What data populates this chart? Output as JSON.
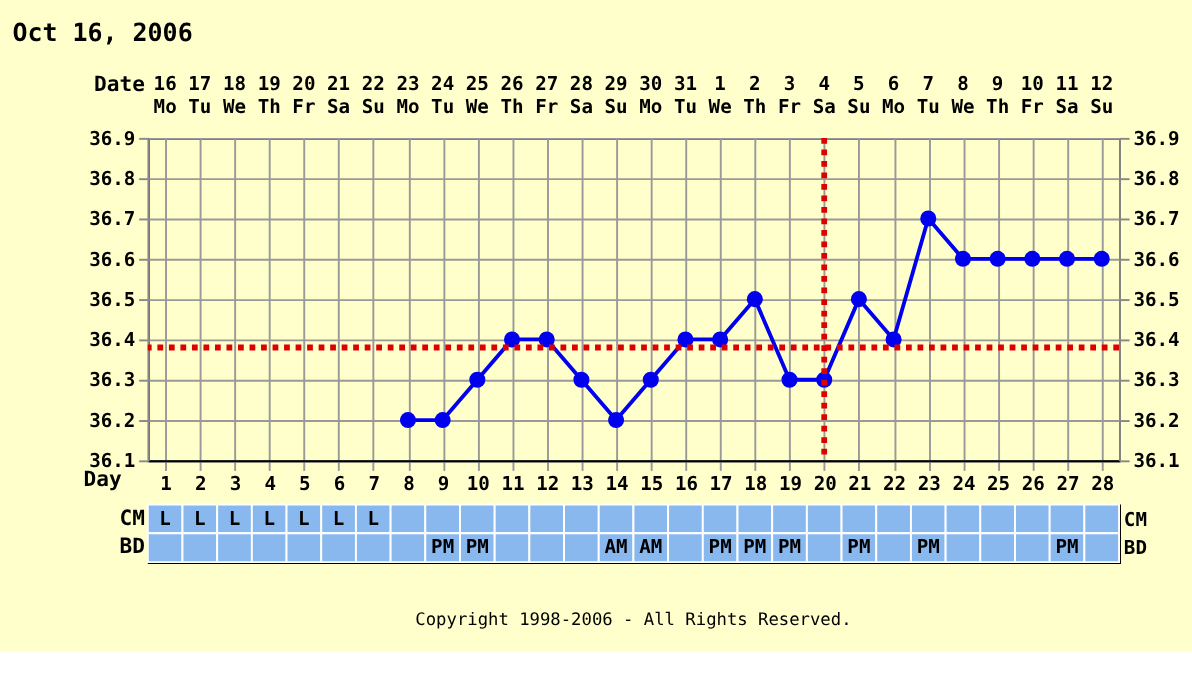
{
  "chart_data": [
    {
      "type": "heatmap",
      "title": "Oct 16, 2006",
      "categories": [
        null,
        null,
        null,
        null,
        null,
        null,
        null,
        null,
        null,
        null,
        null,
        null,
        null,
        null,
        null,
        null,
        null,
        null,
        null,
        null,
        null,
        null,
        null,
        null,
        null,
        null,
        null,
        null
      ],
      "y_categories": [
        "Date"
      ],
      "cells": [
        [
          null,
          null,
          null,
          null,
          null,
          null,
          null,
          null,
          null,
          null,
          null,
          null,
          null,
          null,
          null,
          null,
          null,
          null,
          null,
          null,
          null,
          null,
          null,
          null,
          null,
          null,
          null,
          null
        ]
      ],
      "cell_labels": [
        [
          "16 Mo",
          "17 Tu",
          "18 We",
          "19 Th",
          "20 Fr",
          "21 Sa",
          "22 Su",
          "23 Mo",
          "24 Tu",
          "25 We",
          "26 Th",
          "27 Fr",
          "28 Sa",
          "29 Su",
          "30 Mo",
          "31 Tu",
          "1 We",
          "2 Th",
          "3 Fr",
          "4 Sa",
          "5 Su",
          "6 Mo",
          "7 Tu",
          "8 We",
          "9 Th",
          "10 Fr",
          "11 Sa",
          "12 Su"
        ]
      ]
    },
    {
      "type": "line",
      "xlabel": "Day",
      "x": [
        8,
        9,
        10,
        11,
        12,
        13,
        14,
        15,
        16,
        17,
        18,
        19,
        20,
        21,
        22,
        23,
        24,
        25,
        26,
        27,
        28
      ],
      "series": [
        {
          "color": "#0000ee",
          "values": [
            36.2,
            36.2,
            36.3,
            36.4,
            36.4,
            36.3,
            36.2,
            36.3,
            36.4,
            36.4,
            36.5,
            36.3,
            36.3,
            36.5,
            36.4,
            36.7,
            36.6,
            36.6,
            36.6,
            36.6,
            36.6
          ]
        }
      ],
      "marker": "circle",
      "line_style": "solid",
      "xlim": [
        0.5,
        28.5
      ],
      "xticks": [
        1,
        2,
        3,
        4,
        5,
        6,
        7,
        8,
        9,
        10,
        11,
        12,
        13,
        14,
        15,
        16,
        17,
        18,
        19,
        20,
        21,
        22,
        23,
        24,
        25,
        26,
        27,
        28
      ],
      "ylim": [
        36.1,
        36.9
      ],
      "yticks": [
        36.1,
        36.2,
        36.3,
        36.4,
        36.5,
        36.6,
        36.7,
        36.8,
        36.9
      ],
      "y2lim": [
        36.1,
        36.9
      ],
      "y2ticks": [
        36.1,
        36.2,
        36.3,
        36.4,
        36.5,
        36.6,
        36.7,
        36.8,
        36.9
      ],
      "ref_lines": [
        {
          "axis": "y",
          "value": 36.38,
          "color": "#dd0000",
          "line_style": "dotted"
        },
        {
          "axis": "x",
          "value": 20,
          "color": "#dd0000",
          "line_style": "dotted"
        }
      ],
      "grid": true,
      "legend": false
    },
    {
      "type": "heatmap",
      "categories": [
        null,
        null,
        null,
        null,
        null,
        null,
        null,
        null,
        null,
        null,
        null,
        null,
        null,
        null,
        null,
        null,
        null,
        null,
        null,
        null,
        null,
        null,
        null,
        null,
        null,
        null,
        null,
        null
      ],
      "y_categories": [
        "CM",
        "BD"
      ],
      "y2_categories": [
        "CM",
        "BD"
      ],
      "cells": [
        [
          null,
          null,
          null,
          null,
          null,
          null,
          null,
          null,
          null,
          null,
          null,
          null,
          null,
          null,
          null,
          null,
          null,
          null,
          null,
          null,
          null,
          null,
          null,
          null,
          null,
          null,
          null,
          null
        ],
        [
          null,
          null,
          null,
          null,
          null,
          null,
          null,
          null,
          null,
          null,
          null,
          null,
          null,
          null,
          null,
          null,
          null,
          null,
          null,
          null,
          null,
          null,
          null,
          null,
          null,
          null,
          null,
          null
        ]
      ],
      "cell_labels": [
        [
          "L",
          "L",
          "L",
          "L",
          "L",
          "L",
          "L",
          null,
          null,
          null,
          null,
          null,
          null,
          null,
          null,
          null,
          null,
          null,
          null,
          null,
          null,
          null,
          null,
          null,
          null,
          null,
          null,
          null
        ],
        [
          null,
          null,
          null,
          null,
          null,
          null,
          null,
          null,
          "PM",
          "PM",
          null,
          null,
          null,
          "AM",
          "AM",
          null,
          "PM",
          "PM",
          "PM",
          null,
          "PM",
          null,
          "PM",
          null,
          null,
          null,
          "PM",
          null
        ]
      ],
      "annotations": [
        "Copyright 1998-2006 - All Rights Reserved."
      ]
    }
  ]
}
